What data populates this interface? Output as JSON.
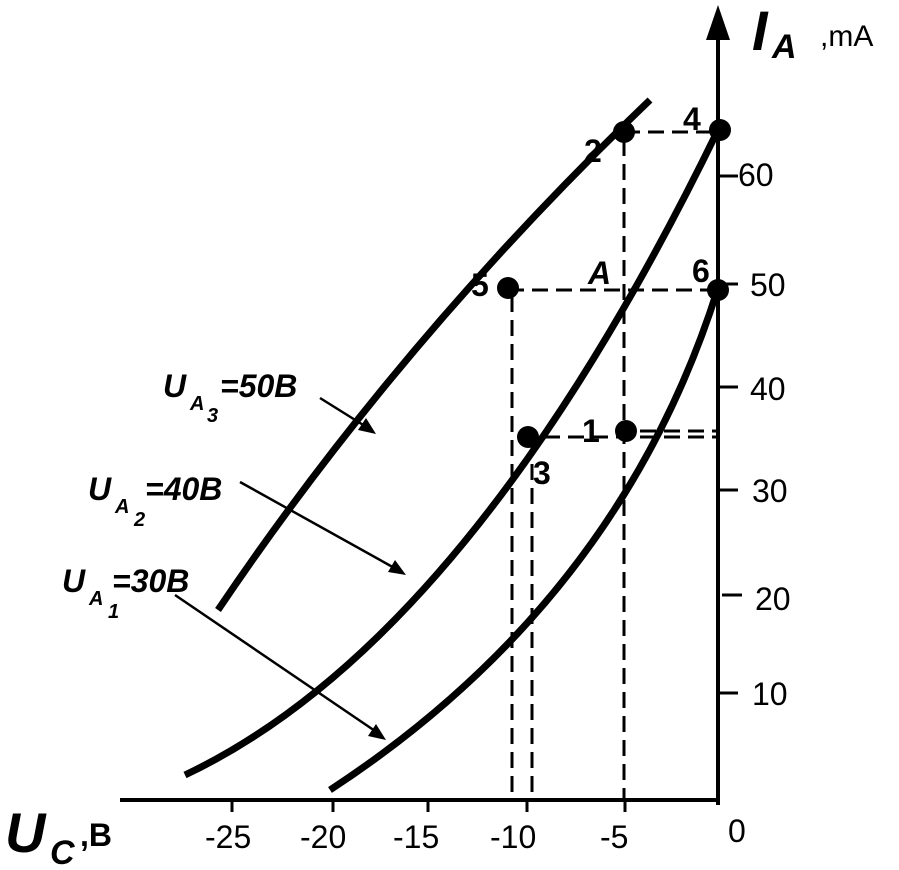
{
  "axes": {
    "y": {
      "symbol": "I",
      "subscript": "A",
      "unit": ",mA",
      "ticks": [
        {
          "value": 10,
          "label": "10"
        },
        {
          "value": 20,
          "label": "20"
        },
        {
          "value": 30,
          "label": "30"
        },
        {
          "value": 40,
          "label": "40"
        },
        {
          "value": 50,
          "label": "50"
        },
        {
          "value": 60,
          "label": "60"
        }
      ]
    },
    "x": {
      "symbol": "U",
      "subscript": "C",
      "unit": ",B",
      "ticks": [
        {
          "value": -25,
          "label": "-25"
        },
        {
          "value": -20,
          "label": "-20"
        },
        {
          "value": -15,
          "label": "-15"
        },
        {
          "value": -10,
          "label": "-10"
        },
        {
          "value": -5,
          "label": "-5"
        },
        {
          "value": 0,
          "label": "0"
        }
      ]
    }
  },
  "curves": [
    {
      "id": "ua3",
      "label_prefix": "U",
      "label_sub_main": "A",
      "label_sub_index": "3",
      "label_suffix": "=50B"
    },
    {
      "id": "ua2",
      "label_prefix": "U",
      "label_sub_main": "A",
      "label_sub_index": "2",
      "label_suffix": "=40B"
    },
    {
      "id": "ua1",
      "label_prefix": "U",
      "label_sub_main": "A",
      "label_sub_index": "1",
      "label_suffix": "=30B"
    }
  ],
  "points": [
    {
      "label": "1",
      "u": -5,
      "i": 36
    },
    {
      "label": "2",
      "u": -5,
      "i": 64
    },
    {
      "label": "3",
      "u": -10,
      "i": 35
    },
    {
      "label": "4",
      "u": 0,
      "i": 64
    },
    {
      "label": "5",
      "u": -11,
      "i": 50
    },
    {
      "label": "6",
      "u": 0,
      "i": 50
    }
  ],
  "operating_point": {
    "label": "A",
    "u": -5,
    "i": 50
  }
}
